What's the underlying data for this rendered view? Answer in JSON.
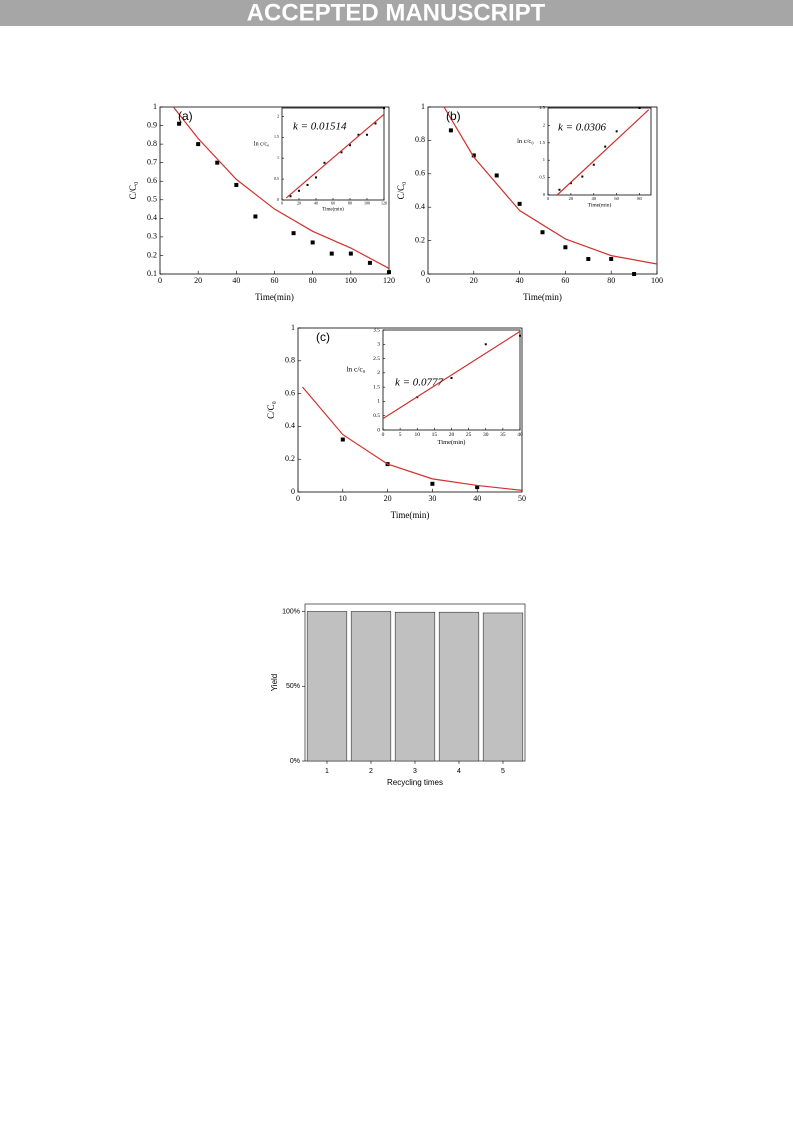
{
  "header": {
    "banner": "ACCEPTED MANUSCRIPT"
  },
  "chart_data": [
    {
      "type": "scatter",
      "panel_label": "(a)",
      "x_label": "Time(min)",
      "y_label": "C/C₀",
      "xlim": [
        0,
        120
      ],
      "ylim": [
        0.1,
        1.0
      ],
      "xticks": [
        0,
        20,
        40,
        60,
        80,
        100,
        120
      ],
      "yticks": [
        0.1,
        0.2,
        0.3,
        0.4,
        0.5,
        0.6,
        0.7,
        0.8,
        0.9,
        1.0
      ],
      "series": [
        {
          "mode": "markers",
          "color": "#000000",
          "x": [
            10,
            20,
            30,
            40,
            50,
            70,
            80,
            90,
            100,
            110,
            120
          ],
          "values": [
            0.91,
            0.8,
            0.7,
            0.58,
            0.41,
            0.32,
            0.27,
            0.21,
            0.21,
            0.16,
            0.11
          ]
        },
        {
          "mode": "line",
          "color": "#d0312d",
          "x": [
            7,
            20,
            40,
            60,
            80,
            100,
            120
          ],
          "values": [
            1.0,
            0.83,
            0.61,
            0.45,
            0.33,
            0.24,
            0.13
          ]
        }
      ],
      "inset": {
        "annotation": "k = 0.01514",
        "x_label": "Time(min)",
        "y_label": "ln c/c₀",
        "xlim": [
          0,
          120
        ],
        "ylim": [
          0,
          2.2
        ],
        "xticks": [
          0,
          20,
          40,
          60,
          80,
          100,
          120
        ],
        "yticks": [
          0,
          0.5,
          1,
          1.5,
          2
        ],
        "series": [
          {
            "mode": "markers",
            "color": "#000000",
            "x": [
              10,
              20,
              30,
              40,
              50,
              70,
              80,
              90,
              100,
              110,
              120
            ],
            "values": [
              0.09,
              0.22,
              0.36,
              0.54,
              0.89,
              1.14,
              1.31,
              1.56,
              1.56,
              1.83,
              2.2
            ]
          },
          {
            "mode": "line",
            "color": "#d0312d",
            "x": [
              5,
              120
            ],
            "values": [
              0.05,
              2.05
            ]
          }
        ]
      }
    },
    {
      "type": "scatter",
      "panel_label": "(b)",
      "x_label": "Time(min)",
      "y_label": "C/C₀",
      "xlim": [
        0,
        100
      ],
      "ylim": [
        0,
        1.0
      ],
      "xticks": [
        0,
        20,
        40,
        60,
        80,
        100
      ],
      "yticks": [
        0.0,
        0.2,
        0.4,
        0.6,
        0.8,
        1.0
      ],
      "series": [
        {
          "mode": "markers",
          "color": "#000000",
          "x": [
            10,
            20,
            30,
            40,
            50,
            60,
            70,
            80,
            90
          ],
          "values": [
            0.86,
            0.71,
            0.59,
            0.42,
            0.25,
            0.16,
            0.09,
            0.09,
            0.0
          ]
        },
        {
          "mode": "line",
          "color": "#d0312d",
          "x": [
            7,
            20,
            40,
            60,
            80,
            100
          ],
          "values": [
            1.0,
            0.7,
            0.38,
            0.21,
            0.11,
            0.06
          ]
        }
      ],
      "inset": {
        "annotation": "k = 0.0306",
        "x_label": "Time(min)",
        "y_label": "ln c/c₀",
        "xlim": [
          0,
          90
        ],
        "ylim": [
          0,
          2.5
        ],
        "xticks": [
          0,
          20,
          40,
          60,
          80
        ],
        "yticks": [
          0,
          0.5,
          1,
          1.5,
          2,
          2.5
        ],
        "series": [
          {
            "mode": "markers",
            "color": "#000000",
            "x": [
              10,
              20,
              30,
              40,
              50,
              60,
              80
            ],
            "values": [
              0.15,
              0.34,
              0.53,
              0.87,
              1.39,
              1.83,
              2.5
            ]
          },
          {
            "mode": "line",
            "color": "#d0312d",
            "x": [
              8,
              88
            ],
            "values": [
              0,
              2.45
            ]
          }
        ]
      }
    },
    {
      "type": "scatter",
      "panel_label": "(c)",
      "x_label": "Time(min)",
      "y_label": "C/C₀",
      "xlim": [
        0,
        50
      ],
      "ylim": [
        0,
        1.0
      ],
      "xticks": [
        0,
        10,
        20,
        30,
        40,
        50
      ],
      "yticks": [
        0.0,
        0.2,
        0.4,
        0.6,
        0.8,
        1.0
      ],
      "series": [
        {
          "mode": "markers",
          "color": "#000000",
          "x": [
            10,
            20,
            30,
            40
          ],
          "values": [
            0.32,
            0.17,
            0.05,
            0.03
          ]
        },
        {
          "mode": "line",
          "color": "#d0312d",
          "x": [
            1,
            10,
            20,
            30,
            40,
            50
          ],
          "values": [
            0.64,
            0.35,
            0.17,
            0.08,
            0.04,
            0.01
          ]
        }
      ],
      "inset": {
        "annotation": "k = 0.0777",
        "x_label": "Time(min)",
        "y_label": "ln c/c₀",
        "xlim": [
          0,
          40
        ],
        "ylim": [
          0,
          3.5
        ],
        "xticks": [
          0,
          5,
          10,
          15,
          20,
          25,
          30,
          35,
          40
        ],
        "yticks": [
          0.0,
          0.5,
          1.0,
          1.5,
          2.0,
          2.5,
          3.0,
          3.5
        ],
        "series": [
          {
            "mode": "markers",
            "color": "#000000",
            "x": [
              10,
              20,
              30,
              40
            ],
            "values": [
              1.15,
              1.82,
              3.0,
              3.3
            ]
          },
          {
            "mode": "line",
            "color": "#d0312d",
            "x": [
              0,
              40
            ],
            "values": [
              0.4,
              3.45
            ]
          }
        ]
      }
    },
    {
      "type": "bar",
      "x_label": "Recycling times",
      "y_label": "Yield",
      "categories": [
        "1",
        "2",
        "3",
        "4",
        "5"
      ],
      "values": [
        100,
        100,
        99.5,
        99.5,
        99
      ],
      "color": "#c0c0c0",
      "ylim": [
        0,
        105
      ],
      "yticks": [
        {
          "value": 0,
          "label": "0%"
        },
        {
          "value": 50,
          "label": "50%"
        },
        {
          "value": 100,
          "label": "100%"
        }
      ]
    }
  ]
}
